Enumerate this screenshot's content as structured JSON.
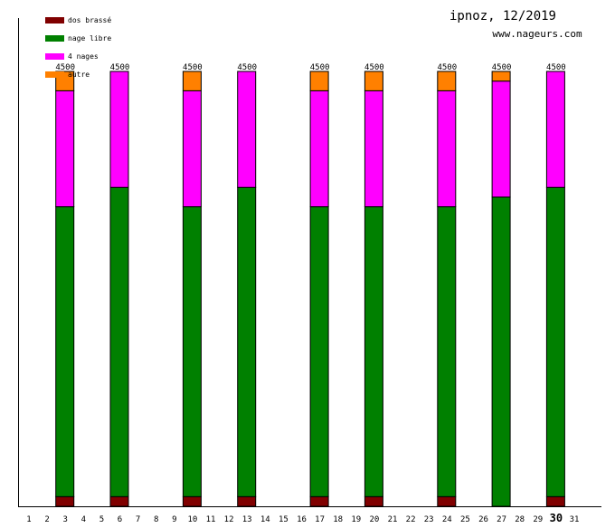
{
  "chart_data": {
    "type": "bar",
    "stacked": true,
    "title": "ipnoz, 12/2019",
    "subtitle": "www.nageurs.com",
    "xlabel": "",
    "ylabel": "",
    "ylim": [
      0,
      4500
    ],
    "highlight_day": "30",
    "categories": [
      "1",
      "2",
      "3",
      "4",
      "5",
      "6",
      "7",
      "8",
      "9",
      "10",
      "11",
      "12",
      "13",
      "14",
      "15",
      "16",
      "17",
      "18",
      "19",
      "20",
      "21",
      "22",
      "23",
      "24",
      "25",
      "26",
      "27",
      "28",
      "29",
      "30",
      "31"
    ],
    "series": [
      {
        "name": "dos brassé",
        "color": "#800000",
        "values": [
          0,
          0,
          100,
          0,
          0,
          100,
          0,
          0,
          0,
          100,
          0,
          0,
          100,
          0,
          0,
          0,
          100,
          0,
          0,
          100,
          0,
          0,
          0,
          100,
          0,
          0,
          0,
          0,
          0,
          100,
          0
        ]
      },
      {
        "name": "nage libre",
        "color": "#008000",
        "values": [
          0,
          0,
          3000,
          0,
          0,
          3200,
          0,
          0,
          0,
          3000,
          0,
          0,
          3200,
          0,
          0,
          0,
          3000,
          0,
          0,
          3000,
          0,
          0,
          0,
          3000,
          0,
          0,
          3200,
          0,
          0,
          3200,
          0
        ]
      },
      {
        "name": "4 nages",
        "color": "#ff00ff",
        "values": [
          0,
          0,
          1200,
          0,
          0,
          1200,
          0,
          0,
          0,
          1200,
          0,
          0,
          1200,
          0,
          0,
          0,
          1200,
          0,
          0,
          1200,
          0,
          0,
          0,
          1200,
          0,
          0,
          1200,
          0,
          0,
          1200,
          0
        ]
      },
      {
        "name": "autre",
        "color": "#ff8000",
        "values": [
          0,
          0,
          200,
          0,
          0,
          0,
          0,
          0,
          0,
          200,
          0,
          0,
          0,
          0,
          0,
          0,
          200,
          0,
          0,
          200,
          0,
          0,
          0,
          200,
          0,
          0,
          100,
          0,
          0,
          0,
          0
        ]
      }
    ],
    "totals_labels": [
      "4500",
      "4500",
      "4500",
      "4500",
      "4500",
      "4500",
      "4500",
      "4500",
      "4500"
    ],
    "legend_position": "top-left",
    "grid": false
  }
}
